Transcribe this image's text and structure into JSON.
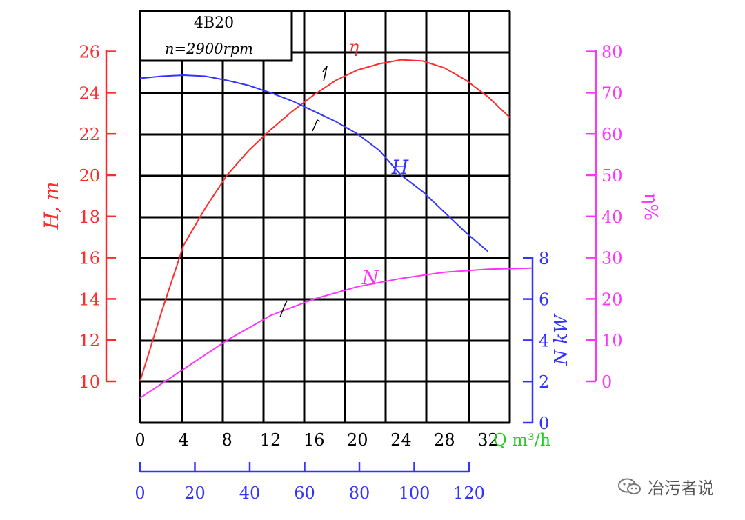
{
  "chart_data": {
    "type": "line",
    "model_box": {
      "line1": "4B20",
      "line2": "n=2900rpm"
    },
    "x_axis": {
      "label": "Q m³/h",
      "range": [
        0,
        34
      ],
      "ticks": [
        "0",
        "4",
        "8",
        "12",
        "16",
        "20",
        "24",
        "28",
        "32"
      ],
      "secondary_ticks": [
        "0",
        "20",
        "40",
        "60",
        "80",
        "100",
        "120"
      ]
    },
    "y_axes": {
      "head": {
        "label": "H, m",
        "range": [
          10,
          26
        ],
        "ticks": [
          "10",
          "12",
          "14",
          "16",
          "18",
          "20",
          "22",
          "24",
          "26"
        ],
        "color": "#ff2a2a"
      },
      "efficiency": {
        "label": "η%",
        "range": [
          0,
          80
        ],
        "ticks": [
          "0",
          "10",
          "20",
          "30",
          "40",
          "50",
          "60",
          "70",
          "80"
        ],
        "color": "#ff33ff"
      },
      "power": {
        "label": "N kW",
        "range": [
          0,
          8
        ],
        "ticks": [
          "0",
          "2",
          "4",
          "6",
          "8"
        ],
        "color": "#3333ff"
      }
    },
    "grid": true,
    "series": [
      {
        "name": "η",
        "axis": "efficiency",
        "color": "#ff2a2a",
        "x": [
          0,
          2,
          4,
          6,
          8,
          10,
          12,
          14,
          16,
          18,
          20,
          22,
          24,
          26,
          28,
          30,
          32,
          34
        ],
        "y": [
          0,
          17,
          33,
          42,
          50,
          56,
          61,
          65.5,
          69.5,
          73,
          75.5,
          77,
          78,
          77.7,
          76,
          73,
          69,
          64
        ]
      },
      {
        "name": "H",
        "axis": "head",
        "color": "#3333ff",
        "x": [
          0,
          2,
          4,
          6,
          8,
          10,
          12,
          14,
          16,
          18,
          20,
          22,
          24,
          26,
          28,
          30,
          32
        ],
        "y": [
          24.7,
          24.8,
          24.85,
          24.8,
          24.6,
          24.35,
          24.0,
          23.6,
          23.1,
          22.6,
          22.0,
          21.2,
          20.0,
          19.2,
          18.2,
          17.2,
          16.3
        ]
      },
      {
        "name": "N",
        "axis": "power",
        "color": "#ff33ff",
        "x": [
          0,
          4,
          8,
          12,
          16,
          20,
          24,
          28,
          32,
          36
        ],
        "y": [
          1.2,
          2.6,
          4.0,
          5.2,
          6.0,
          6.6,
          7.0,
          7.3,
          7.45,
          7.5
        ]
      }
    ],
    "series_labels": {
      "eta": "η",
      "head": "H",
      "power": "N"
    }
  },
  "watermark": {
    "text": "冶污者说",
    "icon": "wechat-icon"
  }
}
